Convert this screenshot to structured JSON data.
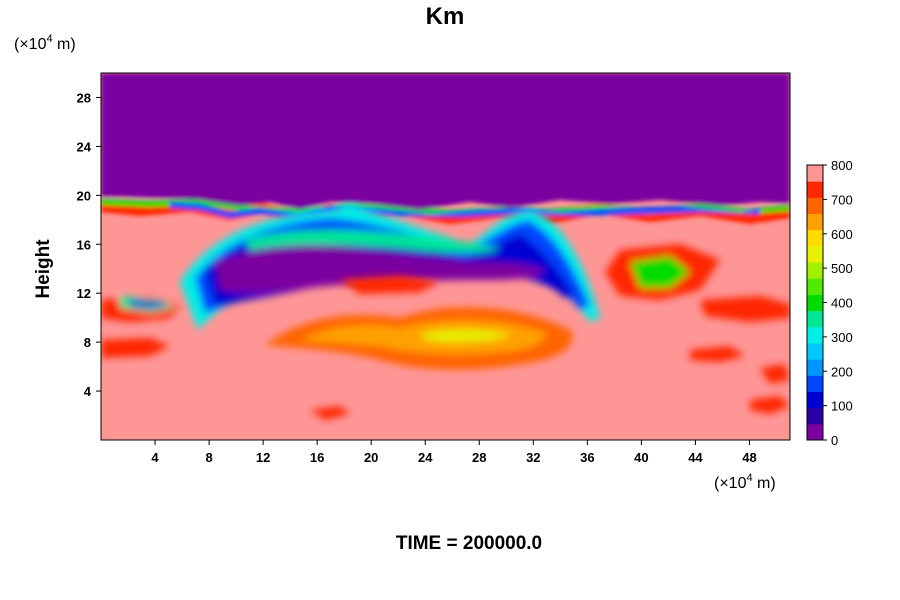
{
  "chart_data": {
    "type": "heatmap",
    "title": "Km",
    "ylabel": "Height",
    "xlabel": "",
    "x_unit": {
      "base": "(×10",
      "exp": "4",
      "tail": " m)"
    },
    "y_unit": {
      "base": "(×10",
      "exp": "4",
      "tail": " m)"
    },
    "x_ticks": [
      4,
      8,
      12,
      16,
      20,
      24,
      28,
      32,
      36,
      40,
      44,
      48
    ],
    "y_ticks": [
      4,
      8,
      12,
      16,
      20,
      24,
      28
    ],
    "xlim": [
      0,
      51
    ],
    "ylim": [
      0,
      30
    ],
    "colorbar": {
      "min": 0,
      "max": 800,
      "step": 50,
      "tick_values": [
        0,
        100,
        200,
        300,
        400,
        500,
        600,
        700,
        800
      ],
      "tick_labels": [
        "0",
        "100",
        "200",
        "300",
        "400",
        "500",
        "600",
        "700",
        "800"
      ],
      "colors": [
        "#7a00a0",
        "#2a00a6",
        "#0000d2",
        "#0046ff",
        "#0096ff",
        "#00c8ff",
        "#00f0e6",
        "#00e696",
        "#00dc00",
        "#50eb00",
        "#a0f000",
        "#e6f000",
        "#ffdc00",
        "#ffa000",
        "#ff6400",
        "#ff2800",
        "#ff9696"
      ]
    },
    "footer": "TIME = 200000.0"
  }
}
